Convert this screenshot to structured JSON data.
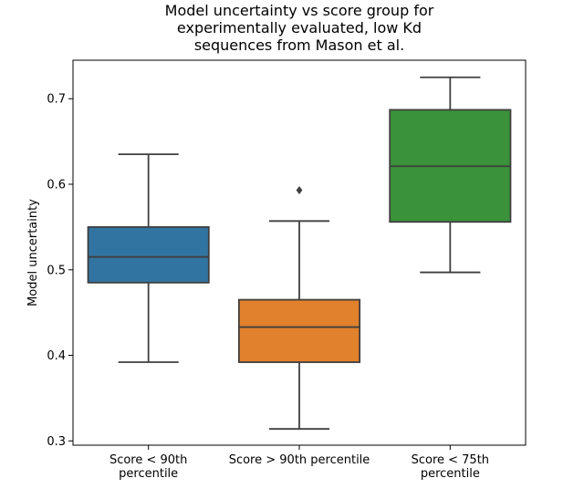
{
  "chart_data": {
    "type": "box",
    "title_lines": [
      "Model uncertainty vs score group for",
      "experimentally evaluated, low Kd",
      "sequences from Mason et al."
    ],
    "xlabel": "",
    "ylabel": "Model uncertainty",
    "ylim": [
      0.295,
      0.745
    ],
    "y_ticks": [
      0.3,
      0.4,
      0.5,
      0.6,
      0.7
    ],
    "y_tick_labels": [
      "0.3",
      "0.4",
      "0.5",
      "0.6",
      "0.7"
    ],
    "grid": false,
    "boxes": [
      {
        "label_lines": [
          "Score < 90th",
          "percentile"
        ],
        "color": "#3274a1",
        "whisker_low": 0.392,
        "q1": 0.485,
        "median": 0.515,
        "q3": 0.55,
        "whisker_high": 0.635,
        "outliers": []
      },
      {
        "label_lines": [
          "Score > 90th percentile"
        ],
        "color": "#e1812c",
        "whisker_low": 0.314,
        "q1": 0.392,
        "median": 0.433,
        "q3": 0.465,
        "whisker_high": 0.557,
        "outliers": [
          0.593
        ]
      },
      {
        "label_lines": [
          "Score < 75th",
          "percentile"
        ],
        "color": "#3a923a",
        "whisker_low": 0.497,
        "q1": 0.556,
        "median": 0.621,
        "q3": 0.687,
        "whisker_high": 0.725,
        "outliers": []
      }
    ]
  }
}
